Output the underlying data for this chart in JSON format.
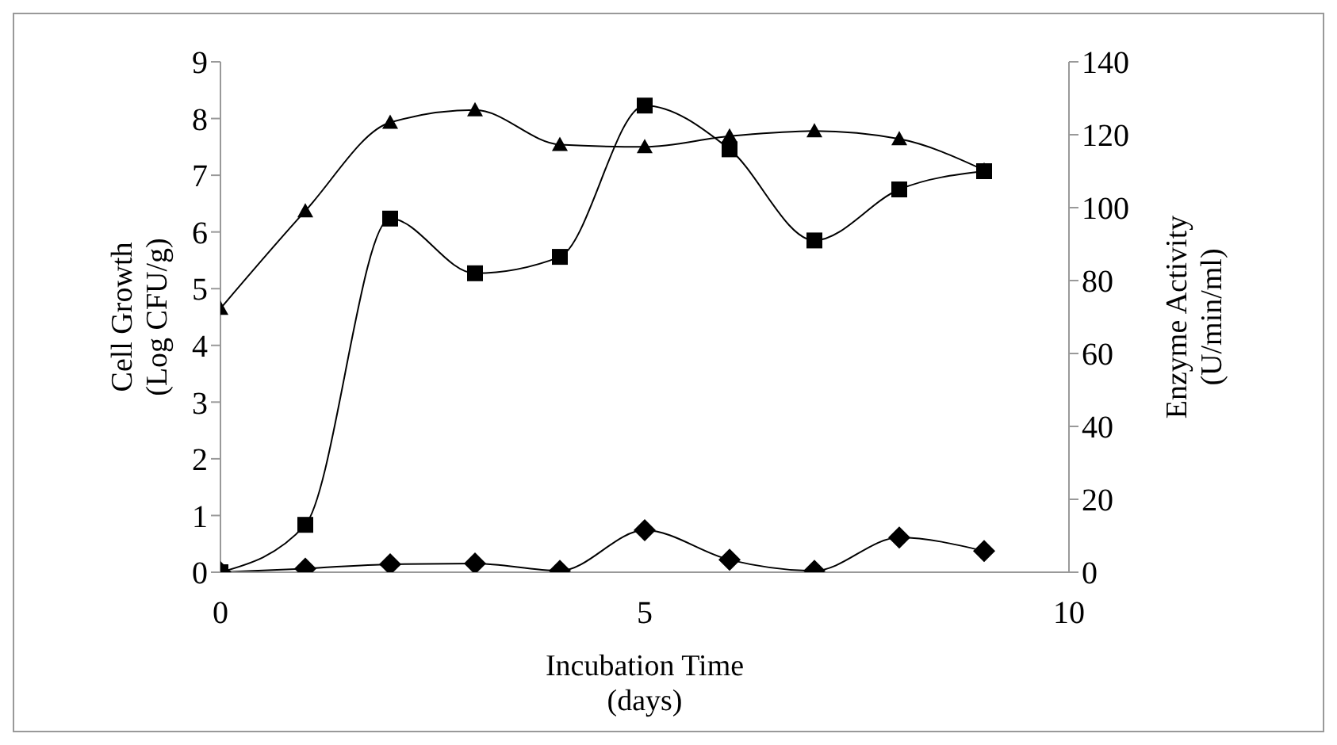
{
  "chart_data": {
    "type": "line",
    "xlabel": "Incubation Time\n(days)",
    "ylabel": "Cell Growth\n(Log CFU/g)",
    "y2label": "Enzyme  Activity\n(U/min/ml)",
    "x": [
      0,
      1,
      2,
      3,
      4,
      5,
      6,
      7,
      8,
      9
    ],
    "series": [
      {
        "color": "#000000",
        "marker": "triangle",
        "values": [
          4.65,
          6.37,
          7.93,
          8.15,
          7.54,
          7.5,
          7.69,
          7.78,
          7.64,
          7.09
        ]
      },
      {
        "color": "#000000",
        "marker": "square",
        "axis": "y2",
        "values": [
          0,
          13,
          97,
          82,
          86.5,
          128,
          116,
          91,
          105,
          110
        ]
      },
      {
        "color": "#000000",
        "marker": "diamond",
        "axis": "y2",
        "values": [
          0,
          1,
          2.2,
          2.4,
          0.4,
          11.5,
          3.4,
          0.4,
          9.5,
          5.8
        ]
      }
    ],
    "xlim": [
      0,
      10
    ],
    "xticks": [
      0,
      5,
      10
    ],
    "ylim": [
      0,
      9
    ],
    "yticks": [
      0,
      1,
      2,
      3,
      4,
      5,
      6,
      7,
      8,
      9
    ],
    "y2lim": [
      0,
      140
    ],
    "y2ticks": [
      0,
      20,
      40,
      60,
      80,
      100,
      120,
      140
    ],
    "grid": false,
    "legend": false
  }
}
